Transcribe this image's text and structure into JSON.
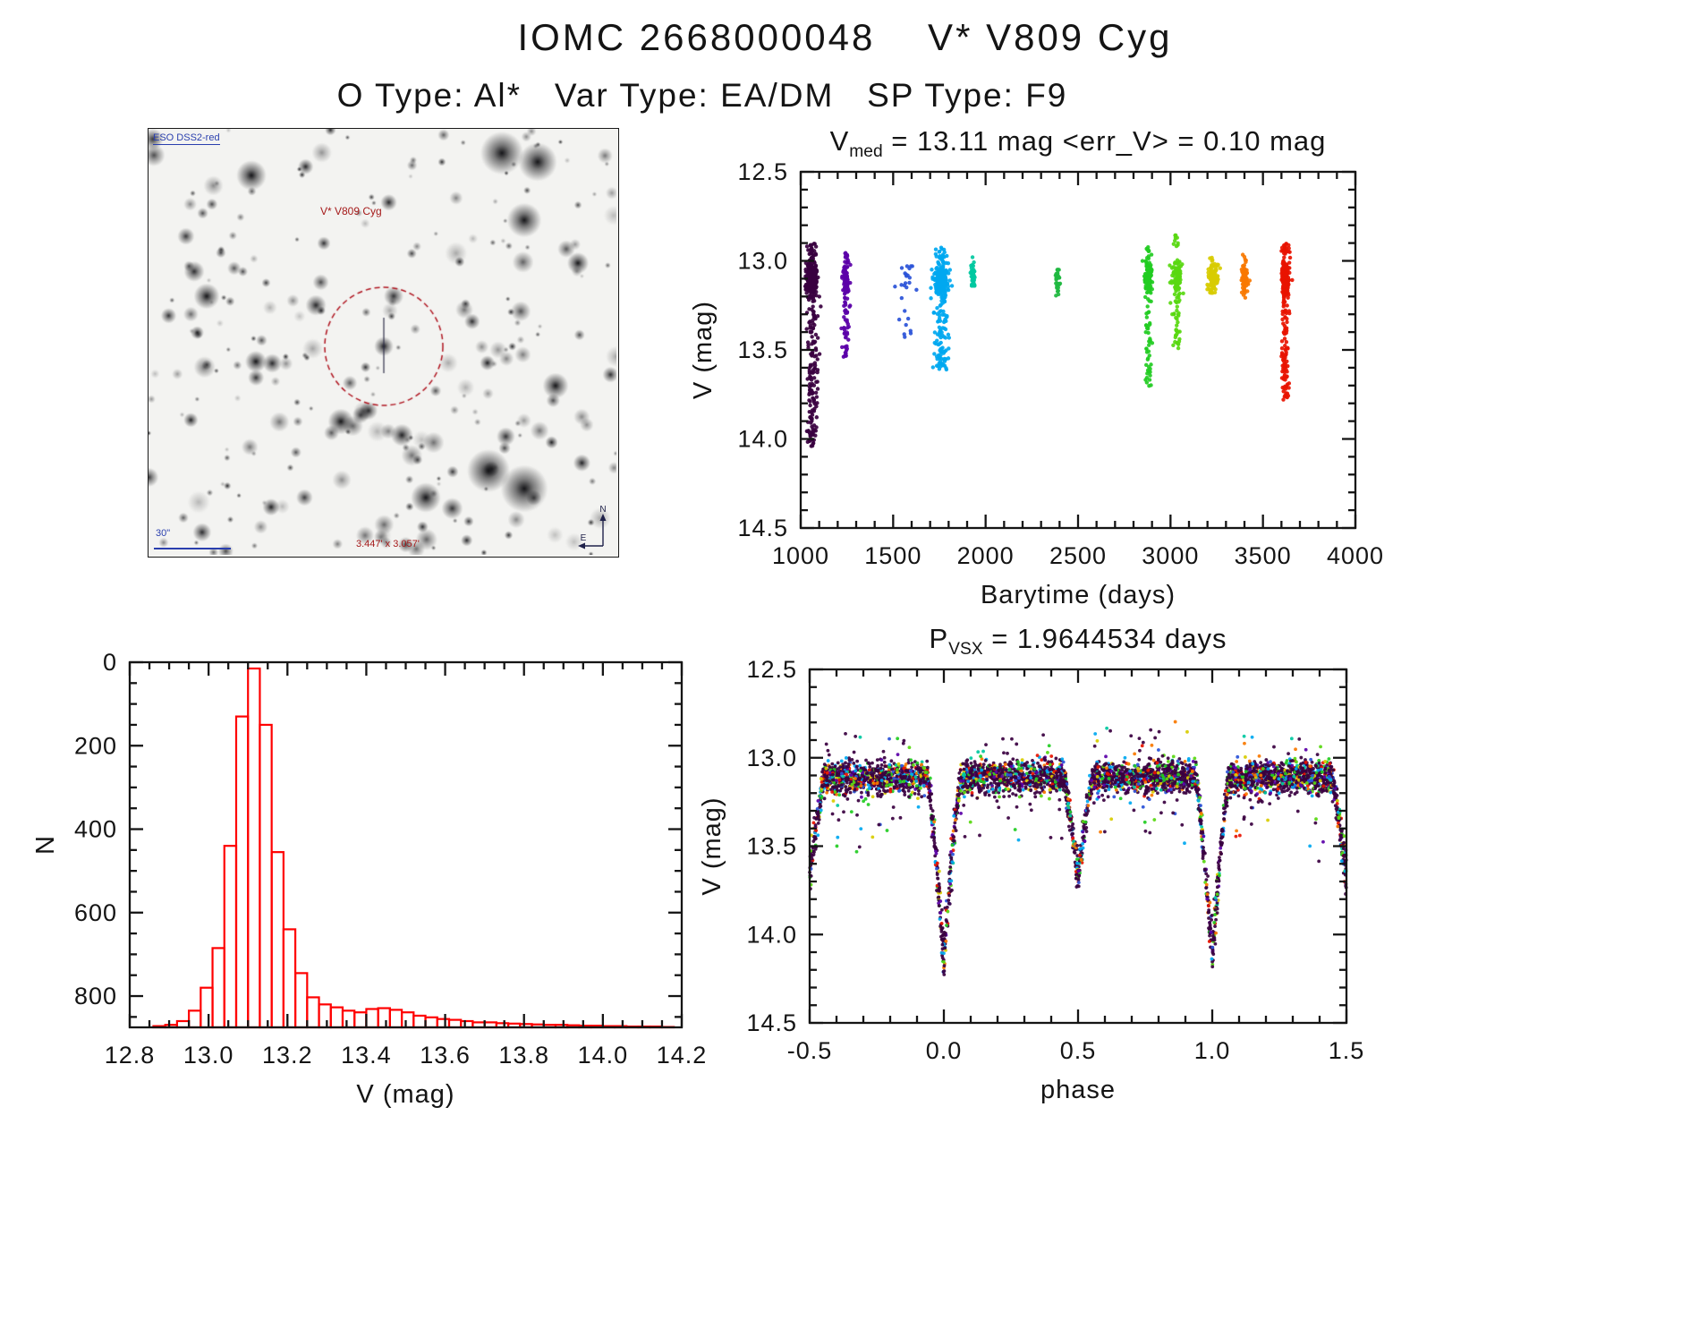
{
  "page": {
    "title": "IOMC 2668000048    V* V809 Cyg",
    "subtitle": "O Type: Al*   Var Type: EA/DM   SP Type: F9"
  },
  "finder_chart": {
    "survey_label": "ESO DSS2-red",
    "target_label": "V* V809 Cyg",
    "scale_label": "30\"",
    "fov_label": "3.447' x 3.057'",
    "compass_north": "N",
    "compass_east": "E",
    "circle_color": "#b01520",
    "seed": 7,
    "n_stars": 250,
    "big_stars": [
      [
        395,
        27,
        10
      ],
      [
        435,
        37,
        9
      ],
      [
        420,
        102,
        8
      ],
      [
        380,
        382,
        10
      ],
      [
        420,
        402,
        11
      ],
      [
        115,
        52,
        7
      ],
      [
        310,
        412,
        7
      ],
      [
        65,
        187,
        6
      ],
      [
        455,
        287,
        6
      ],
      [
        215,
        327,
        6
      ],
      [
        120,
        260,
        5
      ],
      [
        480,
        150,
        5
      ]
    ],
    "target_star": [
      263,
      243,
      4.5
    ],
    "circle_radius": 66
  },
  "chart_data": [
    {
      "id": "lightcurve",
      "type": "scatter",
      "title": {
        "prefix": "V",
        "sub": "med",
        "rest": " = 13.11 mag <err_V> = 0.10 mag"
      },
      "xlabel": "Barytime (days)",
      "ylabel": "V (mag)",
      "xlim": [
        1000,
        4000
      ],
      "ylim": [
        12.5,
        14.5
      ],
      "y_inverted_magnitude_axis": true,
      "xticks": {
        "values": [
          1000,
          1500,
          2000,
          2500,
          3000,
          3500,
          4000
        ],
        "labels": [
          "1000",
          "1500",
          "2000",
          "2500",
          "3000",
          "3500",
          "4000"
        ],
        "minor_per_major": 4
      },
      "yticks": {
        "values": [
          12.5,
          13.0,
          13.5,
          14.0,
          14.5
        ],
        "labels": [
          "12.5",
          "13.0",
          "13.5",
          "14.0",
          "14.5"
        ],
        "minor_per_major": 4
      },
      "clusters": [
        {
          "t": 1060,
          "t_sigma": 14,
          "n": 480,
          "color": "#3a0040",
          "vmin": 12.9,
          "vmax": 14.05
        },
        {
          "t": 1245,
          "t_sigma": 8,
          "n": 130,
          "color": "#5b00a8",
          "vmin": 12.93,
          "vmax": 13.55
        },
        {
          "t": 1570,
          "t_sigma": 28,
          "n": 26,
          "color": "#2a52d8",
          "vmin": 13.03,
          "vmax": 13.43
        },
        {
          "t": 1760,
          "t_sigma": 20,
          "n": 300,
          "color": "#00a8f0",
          "vmin": 12.92,
          "vmax": 13.62
        },
        {
          "t": 1930,
          "t_sigma": 7,
          "n": 45,
          "color": "#00c8a0",
          "vmin": 12.97,
          "vmax": 13.14
        },
        {
          "t": 2390,
          "t_sigma": 7,
          "n": 30,
          "color": "#20b840",
          "vmin": 13.05,
          "vmax": 13.26
        },
        {
          "t": 2880,
          "t_sigma": 10,
          "n": 160,
          "color": "#22cc22",
          "vmin": 12.92,
          "vmax": 13.74
        },
        {
          "t": 3035,
          "t_sigma": 12,
          "n": 130,
          "color": "#58d810",
          "vmin": 12.85,
          "vmax": 13.5
        },
        {
          "t": 3230,
          "t_sigma": 14,
          "n": 95,
          "color": "#d8cc00",
          "vmin": 12.97,
          "vmax": 13.18
        },
        {
          "t": 3400,
          "t_sigma": 10,
          "n": 75,
          "color": "#f87800",
          "vmin": 12.96,
          "vmax": 13.28
        },
        {
          "t": 3620,
          "t_sigma": 10,
          "n": 300,
          "color": "#e81400",
          "vmin": 12.9,
          "vmax": 13.78
        }
      ]
    },
    {
      "id": "histogram",
      "type": "bar",
      "color": "#ff0000",
      "xlabel": "V (mag)",
      "ylabel": "N",
      "xlim": [
        12.8,
        14.2
      ],
      "ylim": [
        0,
        875
      ],
      "bin_start": 12.86,
      "bin_width": 0.03,
      "values": [
        3,
        6,
        15,
        40,
        95,
        190,
        435,
        745,
        860,
        725,
        420,
        235,
        130,
        72,
        55,
        48,
        40,
        36,
        44,
        46,
        42,
        36,
        28,
        24,
        20,
        18,
        15,
        12,
        12,
        10,
        9,
        8,
        7,
        6,
        6,
        5,
        4,
        4,
        3,
        3,
        2,
        2,
        2,
        1
      ],
      "xticks": {
        "values": [
          12.8,
          13.0,
          13.2,
          13.4,
          13.6,
          13.8,
          14.0,
          14.2
        ],
        "labels": [
          "12.8",
          "13.0",
          "13.2",
          "13.4",
          "13.6",
          "13.8",
          "14.0",
          "14.2"
        ],
        "minor_per_major": 3
      },
      "yticks": {
        "values": [
          0,
          200,
          400,
          600,
          800
        ],
        "labels": [
          "0",
          "200",
          "400",
          "600",
          "800"
        ],
        "minor_per_major": 3
      }
    },
    {
      "id": "phase_curve",
      "type": "scatter",
      "title": {
        "prefix": "P",
        "sub": "VSX",
        "rest": " = 1.9644534 days"
      },
      "xlabel": "phase",
      "ylabel": "V (mag)",
      "xlim": [
        -0.5,
        1.5
      ],
      "ylim": [
        12.5,
        14.5
      ],
      "y_inverted_magnitude_axis": true,
      "xticks": {
        "values": [
          -0.5,
          0.0,
          0.5,
          1.0,
          1.5
        ],
        "labels": [
          "-0.5",
          "0.0",
          "0.5",
          "1.0",
          "1.5"
        ],
        "minor_per_major": 4
      },
      "yticks": {
        "values": [
          12.5,
          13.0,
          13.5,
          14.0,
          14.5
        ],
        "labels": [
          "12.5",
          "13.0",
          "13.5",
          "14.0",
          "14.5"
        ],
        "minor_per_major": 4
      },
      "model": {
        "n_points": 4600,
        "baseline": 13.11,
        "band_sigma": 0.045,
        "primary": {
          "center": 0.0,
          "depth": 1.02,
          "halfwidth": 0.062
        },
        "secondary": {
          "center": 0.5,
          "depth": 0.56,
          "halfwidth": 0.055
        },
        "colors": [
          {
            "color": "#3a0040",
            "weight": 0.58
          },
          {
            "color": "#5b00a8",
            "weight": 0.05
          },
          {
            "color": "#2a52d8",
            "weight": 0.04
          },
          {
            "color": "#00a8f0",
            "weight": 0.07
          },
          {
            "color": "#00c8a0",
            "weight": 0.02
          },
          {
            "color": "#22cc22",
            "weight": 0.06
          },
          {
            "color": "#58d810",
            "weight": 0.04
          },
          {
            "color": "#d8cc00",
            "weight": 0.04
          },
          {
            "color": "#f87800",
            "weight": 0.04
          },
          {
            "color": "#e81400",
            "weight": 0.06
          }
        ]
      }
    }
  ]
}
